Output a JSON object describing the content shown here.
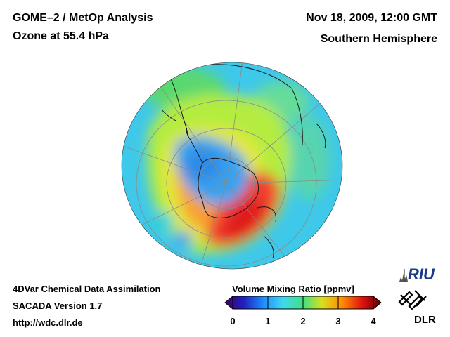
{
  "header": {
    "title": "GOME–2 / MetOp Analysis",
    "subtitle": "Ozone at 55.4 hPa",
    "date": "Nov 18, 2009, 12:00 GMT",
    "region": "Southern Hemisphere"
  },
  "footer": {
    "line1": "4DVar Chemical Data Assimilation",
    "line2": "SACADA Version 1.7",
    "line3": "http://wdc.dlr.de"
  },
  "colorbar": {
    "title": "Volume Mixing Ratio [ppmv]",
    "min": 0,
    "max": 4,
    "ticks": [
      "0",
      "1",
      "2",
      "3",
      "4"
    ],
    "colors": [
      "#3a0060",
      "#2020c0",
      "#1e90ff",
      "#40d8f0",
      "#40e080",
      "#d8e020",
      "#ff8c00",
      "#e01010",
      "#5a0000"
    ]
  },
  "map": {
    "projection": "orthographic, south-polar",
    "colors": {
      "ocean_background": "#3ec8ea",
      "ozone_hole": "#3aa0ee",
      "mid_band": "#a8ea46",
      "high_band": "#f03a28",
      "coastline": "#1a1a1a",
      "graticule": "#8a8a8a"
    }
  },
  "logos": {
    "riu": "RIU",
    "dlr": "DLR"
  }
}
